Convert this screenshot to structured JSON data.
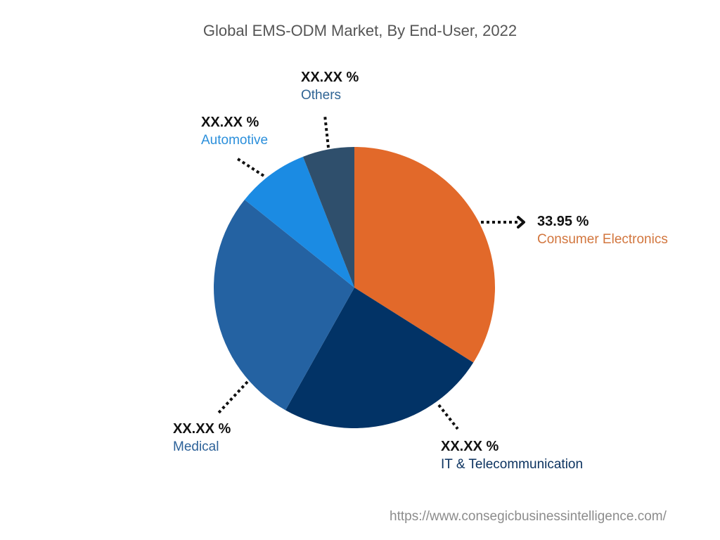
{
  "title": "Global EMS-ODM Market, By End-User, 2022",
  "watermark": "https://www.consegicbusinessintelligence.com/",
  "segments": [
    {
      "name": "Consumer Electronics",
      "value_label": "33.95 %",
      "color": "#E2692A",
      "label_color": "#D2763E"
    },
    {
      "name": "IT & Telecommunication",
      "value_label": "XX.XX %",
      "color": "#023366",
      "label_color": "#0C3360"
    },
    {
      "name": "Medical",
      "value_label": "XX.XX %",
      "color": "#2462A2",
      "label_color": "#2D6299"
    },
    {
      "name": "Automotive",
      "value_label": "XX.XX %",
      "color": "#1B8BE3",
      "label_color": "#2B8FDB"
    },
    {
      "name": "Others",
      "value_label": "XX.XX %",
      "color": "#2F4F6C",
      "label_color": "#2F6494"
    }
  ],
  "chart_data": {
    "type": "pie",
    "title": "Global EMS-ODM Market, By End-User, 2022",
    "categories": [
      "Consumer Electronics",
      "IT & Telecommunication",
      "Medical",
      "Automotive",
      "Others"
    ],
    "values": [
      33.95,
      24.2,
      27.6,
      8.3,
      5.95
    ],
    "value_labels": [
      "33.95 %",
      "XX.XX %",
      "XX.XX %",
      "XX.XX %",
      "XX.XX %"
    ],
    "colors": [
      "#E2692A",
      "#023366",
      "#2462A2",
      "#1B8BE3",
      "#2F4F6C"
    ],
    "start_angle_deg": 0,
    "direction": "clockwise",
    "legend": "none (callout labels)"
  }
}
